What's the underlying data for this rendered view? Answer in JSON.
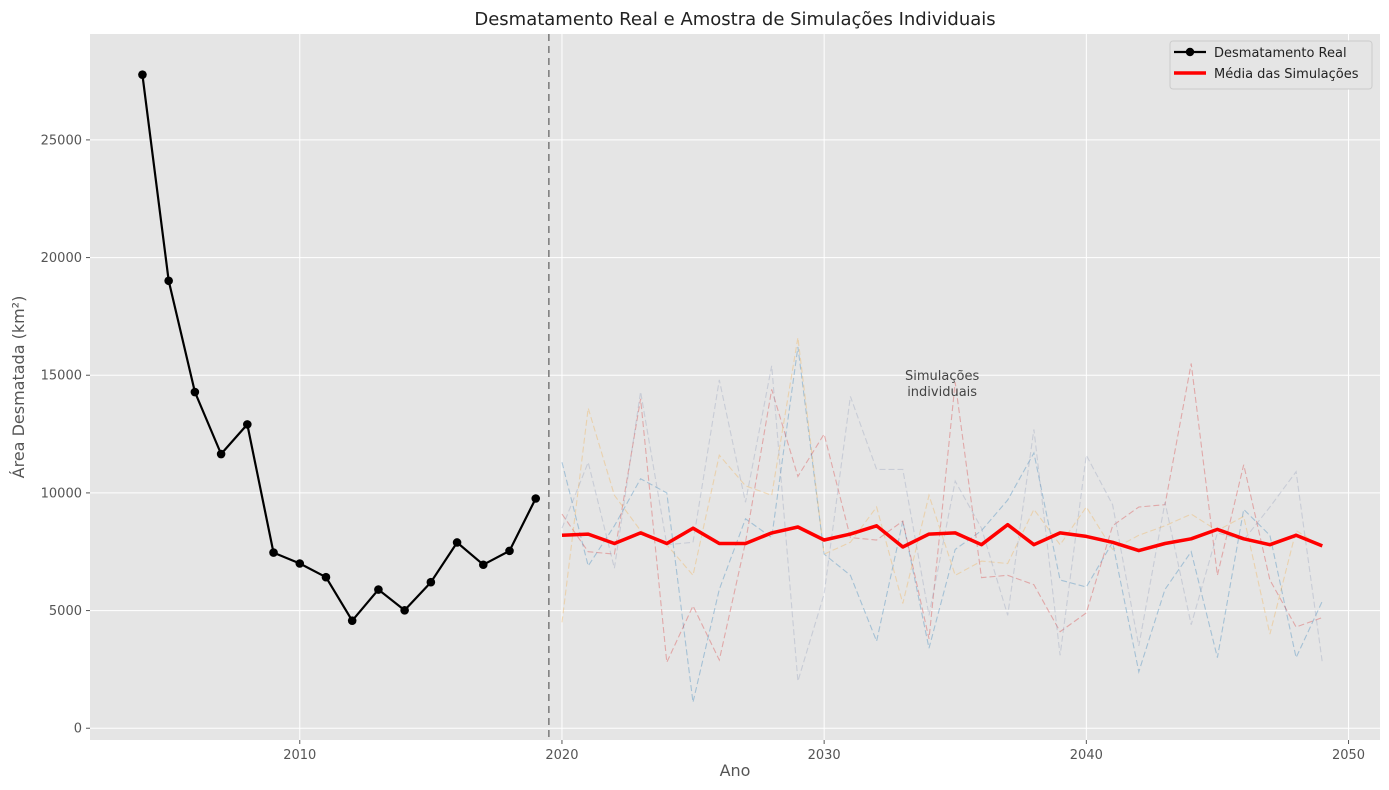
{
  "chart_data": {
    "type": "line",
    "title": "Desmatamento Real e Amostra de Simulações Individuais",
    "xlabel": "Ano",
    "ylabel": "Área Desmatada (km²)",
    "xlim": [
      2002,
      2051.2
    ],
    "ylim": [
      -500,
      29500
    ],
    "x_ticks": [
      2010,
      2020,
      2030,
      2040,
      2050
    ],
    "y_ticks": [
      0,
      5000,
      10000,
      15000,
      20000,
      25000
    ],
    "grid": true,
    "legend_position": "top-right",
    "separator_x": 2019.5,
    "annotation": {
      "lines": [
        "Simulações",
        "individuais"
      ],
      "x": 2034.5,
      "y": 14800
    },
    "series": [
      {
        "name": "Desmatamento Real",
        "color": "#000000",
        "marker": "circle",
        "x": [
          2004,
          2005,
          2006,
          2007,
          2008,
          2009,
          2010,
          2011,
          2012,
          2013,
          2014,
          2015,
          2016,
          2017,
          2018,
          2019
        ],
        "values": [
          27772,
          19014,
          14286,
          11651,
          12911,
          7464,
          7000,
          6418,
          4571,
          5891,
          5012,
          6207,
          7893,
          6947,
          7536,
          9762
        ]
      },
      {
        "name": "Média das Simulações",
        "color": "#ff0000",
        "x": [
          2020,
          2021,
          2022,
          2023,
          2024,
          2025,
          2026,
          2027,
          2028,
          2029,
          2030,
          2031,
          2032,
          2033,
          2034,
          2035,
          2036,
          2037,
          2038,
          2039,
          2040,
          2041,
          2042,
          2043,
          2044,
          2045,
          2046,
          2047,
          2048,
          2049
        ],
        "values": [
          8200,
          8250,
          7850,
          8300,
          7850,
          8500,
          7850,
          7850,
          8300,
          8550,
          8000,
          8250,
          8600,
          7700,
          8250,
          8300,
          7800,
          8650,
          7800,
          8300,
          8150,
          7900,
          7550,
          7850,
          8050,
          8450,
          8050,
          7800,
          8200,
          7750
        ]
      }
    ],
    "simulations": [
      {
        "color": "#1f77b4",
        "x": [
          2020,
          2021,
          2022,
          2023,
          2024,
          2025,
          2026,
          2027,
          2028,
          2029,
          2030,
          2031,
          2032,
          2033,
          2034,
          2035,
          2036,
          2037,
          2038,
          2039,
          2040,
          2041,
          2042,
          2043,
          2044,
          2045,
          2046,
          2047,
          2048,
          2049
        ],
        "values": [
          11300,
          6900,
          8600,
          10600,
          10000,
          1100,
          5900,
          8900,
          8100,
          16200,
          7400,
          6500,
          3700,
          8800,
          3400,
          7600,
          8400,
          9700,
          11700,
          6300,
          6000,
          7900,
          2400,
          5900,
          7500,
          3000,
          9300,
          8200,
          3000,
          5400
        ]
      },
      {
        "color": "#d62728",
        "x": [
          2020,
          2021,
          2022,
          2023,
          2024,
          2025,
          2026,
          2027,
          2028,
          2029,
          2030,
          2031,
          2032,
          2033,
          2034,
          2035,
          2036,
          2037,
          2038,
          2039,
          2040,
          2041,
          2042,
          2043,
          2044,
          2045,
          2046,
          2047,
          2048,
          2049
        ],
        "values": [
          9100,
          7500,
          7400,
          14000,
          2800,
          5200,
          2900,
          7900,
          14400,
          10700,
          12500,
          8100,
          8000,
          8800,
          3800,
          14700,
          6400,
          6500,
          6100,
          4100,
          4900,
          8600,
          9400,
          9500,
          15500,
          6500,
          11200,
          6300,
          4300,
          4700
        ]
      },
      {
        "color": "#f2a93b",
        "x": [
          2020,
          2021,
          2022,
          2023,
          2024,
          2025,
          2026,
          2027,
          2028,
          2029,
          2030,
          2031,
          2032,
          2033,
          2034,
          2035,
          2036,
          2037,
          2038,
          2039,
          2040,
          2041,
          2042,
          2043,
          2044,
          2045,
          2046,
          2047,
          2048,
          2049
        ],
        "values": [
          4500,
          13600,
          9900,
          8400,
          7800,
          6500,
          11600,
          10300,
          9900,
          16600,
          7400,
          7900,
          9400,
          5300,
          9900,
          6500,
          7100,
          7000,
          9300,
          7800,
          9400,
          7600,
          8200,
          8600,
          9100,
          8400,
          9000,
          4000,
          8400,
          7700
        ]
      },
      {
        "color": "#8c97b8",
        "x": [
          2020,
          2021,
          2022,
          2023,
          2024,
          2025,
          2026,
          2027,
          2028,
          2029,
          2030,
          2031,
          2032,
          2033,
          2034,
          2035,
          2036,
          2037,
          2038,
          2039,
          2040,
          2041,
          2042,
          2043,
          2044,
          2045,
          2046,
          2047,
          2048,
          2049
        ],
        "values": [
          8500,
          11300,
          6800,
          14300,
          7800,
          7900,
          14800,
          9600,
          15400,
          2000,
          5700,
          14100,
          11000,
          11000,
          4800,
          10500,
          8500,
          4800,
          12700,
          3100,
          11600,
          9500,
          3500,
          9600,
          4400,
          8300,
          8000,
          9400,
          10900,
          2800
        ]
      }
    ]
  }
}
